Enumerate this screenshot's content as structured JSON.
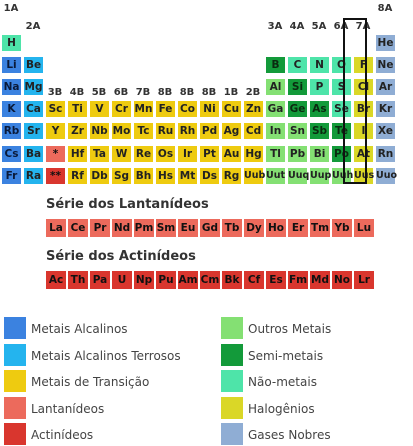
{
  "colors": {
    "alkali": "#3b82e0",
    "alkaline_earth": "#24b4ee",
    "transition": "#eecb10",
    "lanthanide": "#ec6a5c",
    "actinide": "#d9362e",
    "other_metal": "#84e073",
    "metalloid": "#139a3a",
    "nonmetal": "#4ee4a9",
    "halogen": "#dad727",
    "noble": "#8fadd4"
  },
  "groups": [
    {
      "label": "1A",
      "col": 1,
      "row": 0
    },
    {
      "label": "2A",
      "col": 2,
      "row": 1
    },
    {
      "label": "3B",
      "col": 3,
      "row": 4
    },
    {
      "label": "4B",
      "col": 4,
      "row": 4
    },
    {
      "label": "5B",
      "col": 5,
      "row": 4
    },
    {
      "label": "6B",
      "col": 6,
      "row": 4
    },
    {
      "label": "7B",
      "col": 7,
      "row": 4
    },
    {
      "label": "8B",
      "col": 8,
      "row": 4
    },
    {
      "label": "8B",
      "col": 9,
      "row": 4
    },
    {
      "label": "8B",
      "col": 10,
      "row": 4
    },
    {
      "label": "1B",
      "col": 11,
      "row": 4
    },
    {
      "label": "2B",
      "col": 12,
      "row": 4
    },
    {
      "label": "3A",
      "col": 13,
      "row": 1
    },
    {
      "label": "4A",
      "col": 14,
      "row": 1
    },
    {
      "label": "5A",
      "col": 15,
      "row": 1
    },
    {
      "label": "6A",
      "col": 16,
      "row": 1
    },
    {
      "label": "7A",
      "col": 17,
      "row": 1
    },
    {
      "label": "8A",
      "col": 18,
      "row": 0
    }
  ],
  "elements": [
    {
      "s": "H",
      "c": 1,
      "r": 1,
      "t": "nonmetal"
    },
    {
      "s": "He",
      "c": 18,
      "r": 1,
      "t": "noble"
    },
    {
      "s": "Li",
      "c": 1,
      "r": 2,
      "t": "alkali"
    },
    {
      "s": "Be",
      "c": 2,
      "r": 2,
      "t": "alkaline_earth"
    },
    {
      "s": "B",
      "c": 13,
      "r": 2,
      "t": "metalloid"
    },
    {
      "s": "C",
      "c": 14,
      "r": 2,
      "t": "nonmetal"
    },
    {
      "s": "N",
      "c": 15,
      "r": 2,
      "t": "nonmetal"
    },
    {
      "s": "O",
      "c": 16,
      "r": 2,
      "t": "nonmetal"
    },
    {
      "s": "F",
      "c": 17,
      "r": 2,
      "t": "halogen"
    },
    {
      "s": "Ne",
      "c": 18,
      "r": 2,
      "t": "noble"
    },
    {
      "s": "Na",
      "c": 1,
      "r": 3,
      "t": "alkali"
    },
    {
      "s": "Mg",
      "c": 2,
      "r": 3,
      "t": "alkaline_earth"
    },
    {
      "s": "Al",
      "c": 13,
      "r": 3,
      "t": "other_metal"
    },
    {
      "s": "Si",
      "c": 14,
      "r": 3,
      "t": "metalloid"
    },
    {
      "s": "P",
      "c": 15,
      "r": 3,
      "t": "nonmetal"
    },
    {
      "s": "S",
      "c": 16,
      "r": 3,
      "t": "nonmetal"
    },
    {
      "s": "Cl",
      "c": 17,
      "r": 3,
      "t": "halogen"
    },
    {
      "s": "Ar",
      "c": 18,
      "r": 3,
      "t": "noble"
    },
    {
      "s": "K",
      "c": 1,
      "r": 4,
      "t": "alkali"
    },
    {
      "s": "Ca",
      "c": 2,
      "r": 4,
      "t": "alkaline_earth"
    },
    {
      "s": "Sc",
      "c": 3,
      "r": 4,
      "t": "transition"
    },
    {
      "s": "Ti",
      "c": 4,
      "r": 4,
      "t": "transition"
    },
    {
      "s": "V",
      "c": 5,
      "r": 4,
      "t": "transition"
    },
    {
      "s": "Cr",
      "c": 6,
      "r": 4,
      "t": "transition"
    },
    {
      "s": "Mn",
      "c": 7,
      "r": 4,
      "t": "transition"
    },
    {
      "s": "Fe",
      "c": 8,
      "r": 4,
      "t": "transition"
    },
    {
      "s": "Co",
      "c": 9,
      "r": 4,
      "t": "transition"
    },
    {
      "s": "Ni",
      "c": 10,
      "r": 4,
      "t": "transition"
    },
    {
      "s": "Cu",
      "c": 11,
      "r": 4,
      "t": "transition"
    },
    {
      "s": "Zn",
      "c": 12,
      "r": 4,
      "t": "transition"
    },
    {
      "s": "Ga",
      "c": 13,
      "r": 4,
      "t": "other_metal"
    },
    {
      "s": "Ge",
      "c": 14,
      "r": 4,
      "t": "metalloid"
    },
    {
      "s": "As",
      "c": 15,
      "r": 4,
      "t": "metalloid"
    },
    {
      "s": "Se",
      "c": 16,
      "r": 4,
      "t": "nonmetal"
    },
    {
      "s": "Br",
      "c": 17,
      "r": 4,
      "t": "halogen"
    },
    {
      "s": "Kr",
      "c": 18,
      "r": 4,
      "t": "noble"
    },
    {
      "s": "Rb",
      "c": 1,
      "r": 5,
      "t": "alkali"
    },
    {
      "s": "Sr",
      "c": 2,
      "r": 5,
      "t": "alkaline_earth"
    },
    {
      "s": "Y",
      "c": 3,
      "r": 5,
      "t": "transition"
    },
    {
      "s": "Zr",
      "c": 4,
      "r": 5,
      "t": "transition"
    },
    {
      "s": "Nb",
      "c": 5,
      "r": 5,
      "t": "transition"
    },
    {
      "s": "Mo",
      "c": 6,
      "r": 5,
      "t": "transition"
    },
    {
      "s": "Tc",
      "c": 7,
      "r": 5,
      "t": "transition"
    },
    {
      "s": "Ru",
      "c": 8,
      "r": 5,
      "t": "transition"
    },
    {
      "s": "Rh",
      "c": 9,
      "r": 5,
      "t": "transition"
    },
    {
      "s": "Pd",
      "c": 10,
      "r": 5,
      "t": "transition"
    },
    {
      "s": "Ag",
      "c": 11,
      "r": 5,
      "t": "transition"
    },
    {
      "s": "Cd",
      "c": 12,
      "r": 5,
      "t": "transition"
    },
    {
      "s": "In",
      "c": 13,
      "r": 5,
      "t": "other_metal"
    },
    {
      "s": "Sn",
      "c": 14,
      "r": 5,
      "t": "other_metal"
    },
    {
      "s": "Sb",
      "c": 15,
      "r": 5,
      "t": "metalloid"
    },
    {
      "s": "Te",
      "c": 16,
      "r": 5,
      "t": "metalloid"
    },
    {
      "s": "I",
      "c": 17,
      "r": 5,
      "t": "halogen"
    },
    {
      "s": "Xe",
      "c": 18,
      "r": 5,
      "t": "noble"
    },
    {
      "s": "Cs",
      "c": 1,
      "r": 6,
      "t": "alkali"
    },
    {
      "s": "Ba",
      "c": 2,
      "r": 6,
      "t": "alkaline_earth"
    },
    {
      "s": "*",
      "c": 3,
      "r": 6,
      "t": "lanthanide"
    },
    {
      "s": "Hf",
      "c": 4,
      "r": 6,
      "t": "transition"
    },
    {
      "s": "Ta",
      "c": 5,
      "r": 6,
      "t": "transition"
    },
    {
      "s": "W",
      "c": 6,
      "r": 6,
      "t": "transition"
    },
    {
      "s": "Re",
      "c": 7,
      "r": 6,
      "t": "transition"
    },
    {
      "s": "Os",
      "c": 8,
      "r": 6,
      "t": "transition"
    },
    {
      "s": "Ir",
      "c": 9,
      "r": 6,
      "t": "transition"
    },
    {
      "s": "Pt",
      "c": 10,
      "r": 6,
      "t": "transition"
    },
    {
      "s": "Au",
      "c": 11,
      "r": 6,
      "t": "transition"
    },
    {
      "s": "Hg",
      "c": 12,
      "r": 6,
      "t": "transition"
    },
    {
      "s": "Tl",
      "c": 13,
      "r": 6,
      "t": "other_metal"
    },
    {
      "s": "Pb",
      "c": 14,
      "r": 6,
      "t": "other_metal"
    },
    {
      "s": "Bi",
      "c": 15,
      "r": 6,
      "t": "other_metal"
    },
    {
      "s": "Po",
      "c": 16,
      "r": 6,
      "t": "metalloid"
    },
    {
      "s": "At",
      "c": 17,
      "r": 6,
      "t": "halogen"
    },
    {
      "s": "Rn",
      "c": 18,
      "r": 6,
      "t": "noble"
    },
    {
      "s": "Fr",
      "c": 1,
      "r": 7,
      "t": "alkali"
    },
    {
      "s": "Ra",
      "c": 2,
      "r": 7,
      "t": "alkaline_earth"
    },
    {
      "s": "**",
      "c": 3,
      "r": 7,
      "t": "actinide"
    },
    {
      "s": "Rf",
      "c": 4,
      "r": 7,
      "t": "transition"
    },
    {
      "s": "Db",
      "c": 5,
      "r": 7,
      "t": "transition"
    },
    {
      "s": "Sg",
      "c": 6,
      "r": 7,
      "t": "transition"
    },
    {
      "s": "Bh",
      "c": 7,
      "r": 7,
      "t": "transition"
    },
    {
      "s": "Hs",
      "c": 8,
      "r": 7,
      "t": "transition"
    },
    {
      "s": "Mt",
      "c": 9,
      "r": 7,
      "t": "transition"
    },
    {
      "s": "Ds",
      "c": 10,
      "r": 7,
      "t": "transition"
    },
    {
      "s": "Rg",
      "c": 11,
      "r": 7,
      "t": "transition"
    },
    {
      "s": "Uub",
      "c": 12,
      "r": 7,
      "t": "transition"
    },
    {
      "s": "Uut",
      "c": 13,
      "r": 7,
      "t": "other_metal"
    },
    {
      "s": "Uuq",
      "c": 14,
      "r": 7,
      "t": "other_metal"
    },
    {
      "s": "Uup",
      "c": 15,
      "r": 7,
      "t": "other_metal"
    },
    {
      "s": "Uuh",
      "c": 16,
      "r": 7,
      "t": "other_metal"
    },
    {
      "s": "Uus",
      "c": 17,
      "r": 7,
      "t": "halogen"
    },
    {
      "s": "Uuo",
      "c": 18,
      "r": 7,
      "t": "noble"
    }
  ],
  "lanthanides": {
    "title": "Série dos Lantanídeos",
    "symbols": [
      "La",
      "Ce",
      "Pr",
      "Nd",
      "Pm",
      "Sm",
      "Eu",
      "Gd",
      "Tb",
      "Dy",
      "Ho",
      "Er",
      "Tm",
      "Yb",
      "Lu"
    ]
  },
  "actinides": {
    "title": "Série dos Actinídeos",
    "symbols": [
      "Ac",
      "Th",
      "Pa",
      "U",
      "Np",
      "Pu",
      "Am",
      "Cm",
      "Bk",
      "Cf",
      "Es",
      "Fm",
      "Md",
      "No",
      "Lr"
    ]
  },
  "legend": [
    {
      "label": "Metais Alcalinos",
      "t": "alkali",
      "col": 0,
      "row": 0
    },
    {
      "label": "Metais Alcalinos Terrosos",
      "t": "alkaline_earth",
      "col": 0,
      "row": 1
    },
    {
      "label": "Metais de Transição",
      "t": "transition",
      "col": 0,
      "row": 2
    },
    {
      "label": "Lantanídeos",
      "t": "lanthanide",
      "col": 0,
      "row": 3
    },
    {
      "label": "Actinídeos",
      "t": "actinide",
      "col": 0,
      "row": 4
    },
    {
      "label": "Outros Metais",
      "t": "other_metal",
      "col": 1,
      "row": 0
    },
    {
      "label": "Semi-metais",
      "t": "metalloid",
      "col": 1,
      "row": 1
    },
    {
      "label": "Não-metais",
      "t": "nonmetal",
      "col": 1,
      "row": 2
    },
    {
      "label": "Halogênios",
      "t": "halogen",
      "col": 1,
      "row": 3
    },
    {
      "label": "Gases Nobres",
      "t": "noble",
      "col": 1,
      "row": 4
    }
  ]
}
